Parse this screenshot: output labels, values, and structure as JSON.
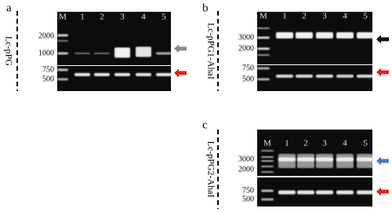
{
  "panels": [
    {
      "label": "a",
      "construct": "Lc-pPG",
      "lanes": [
        "M",
        "1",
        "2",
        "3",
        "4",
        "5"
      ],
      "markers_top": [
        "2000",
        "1000"
      ],
      "markers_bottom": [
        "750",
        "500"
      ]
    },
    {
      "label": "b",
      "construct": "Lc-pPG1-AhaI",
      "lanes": [
        "M",
        "1",
        "2",
        "3",
        "4",
        "5"
      ],
      "markers_top": [
        "3000",
        "2000"
      ],
      "markers_bottom": [
        "750",
        "500"
      ]
    },
    {
      "label": "c",
      "construct": "Lc-pPG2-AhaI",
      "lanes": [
        "M",
        "1",
        "2",
        "3",
        "4",
        "5"
      ],
      "markers_top": [
        "3000",
        "2000"
      ],
      "markers_bottom": [
        "750",
        "500"
      ]
    }
  ]
}
